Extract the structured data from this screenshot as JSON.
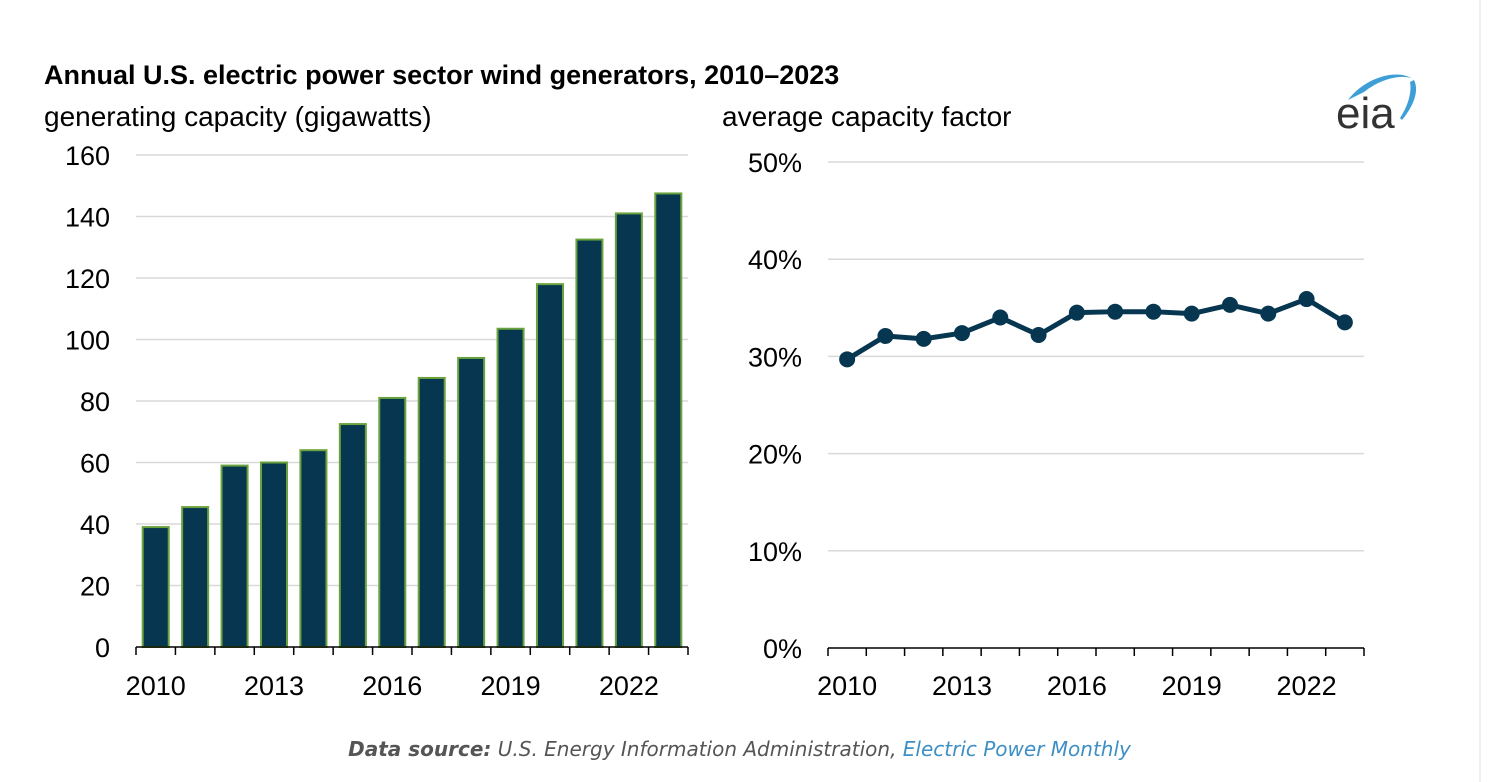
{
  "title": "Annual U.S. electric power sector wind generators, 2010–2023",
  "logo_text": "eia",
  "colors": {
    "bar_fill": "#073650",
    "bar_stroke": "#6aa33d",
    "line": "#073650",
    "grid": "#d9d9d9",
    "link": "#3d8fc4"
  },
  "source": {
    "label": "Data source:",
    "text": "U.S. Energy Information Administration,",
    "link_text": "Electric Power Monthly"
  },
  "chart_data": [
    {
      "type": "bar",
      "ylabel": "generating capacity (gigawatts)",
      "x": [
        2010,
        2011,
        2012,
        2013,
        2014,
        2015,
        2016,
        2017,
        2018,
        2019,
        2020,
        2021,
        2022,
        2023
      ],
      "values": [
        39,
        45.5,
        59,
        60,
        64,
        72.5,
        81,
        87.5,
        94,
        103.5,
        118,
        132.5,
        141,
        147.5
      ],
      "ylim": [
        0,
        160
      ],
      "yticks": [
        0,
        20,
        40,
        60,
        80,
        100,
        120,
        140,
        160
      ],
      "xtick_labels": [
        "2010",
        "2013",
        "2016",
        "2019",
        "2022"
      ],
      "grid": true,
      "legend": "none"
    },
    {
      "type": "line",
      "ylabel": "average capacity factor",
      "x": [
        2010,
        2011,
        2012,
        2013,
        2014,
        2015,
        2016,
        2017,
        2018,
        2019,
        2020,
        2021,
        2022,
        2023
      ],
      "values": [
        29.7,
        32.1,
        31.8,
        32.4,
        34.0,
        32.2,
        34.5,
        34.6,
        34.6,
        34.4,
        35.3,
        34.4,
        35.9,
        33.5
      ],
      "ylim": [
        0,
        50
      ],
      "yticks": [
        0,
        10,
        20,
        30,
        40,
        50
      ],
      "ytick_labels": [
        "0%",
        "10%",
        "20%",
        "30%",
        "40%",
        "50%"
      ],
      "xtick_labels": [
        "2010",
        "2013",
        "2016",
        "2019",
        "2022"
      ],
      "grid": true,
      "legend": "none"
    }
  ]
}
